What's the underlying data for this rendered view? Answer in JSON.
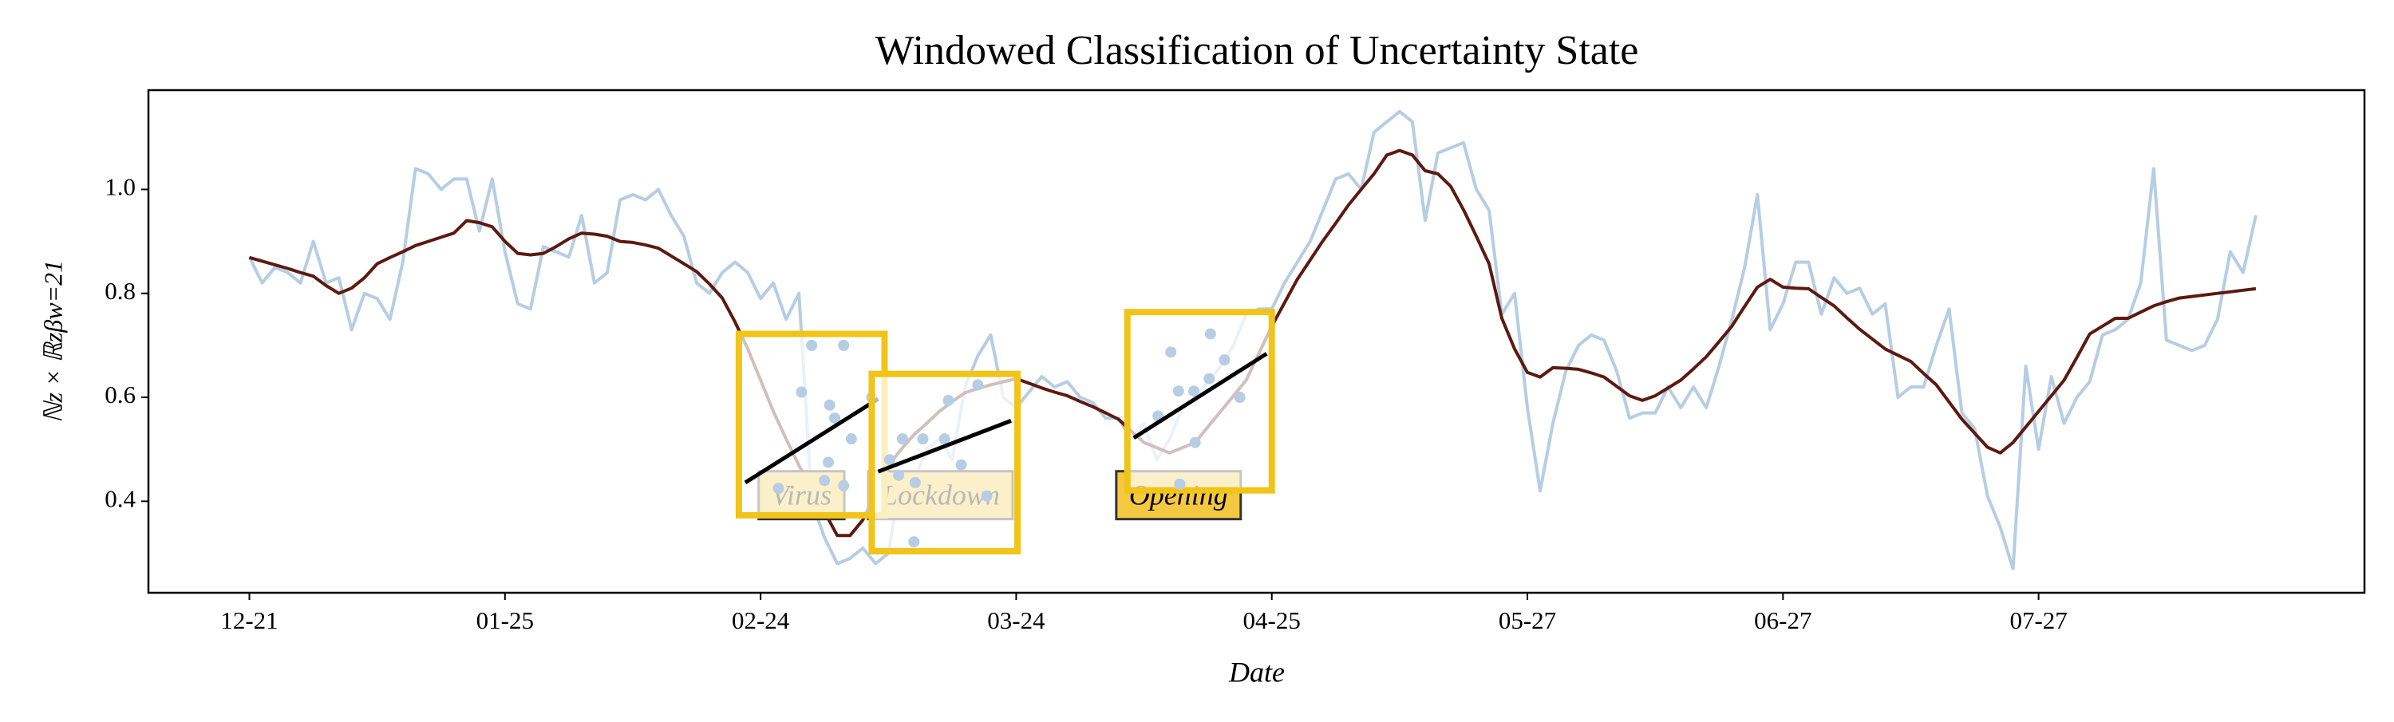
{
  "chart_data": {
    "type": "line",
    "title": "Windowed Classification of Uncertainty State",
    "xlabel": "Date",
    "ylabel": "ℕz × ℝzβw=21",
    "categories": [
      "12-21",
      null,
      null,
      null,
      null,
      null,
      null,
      null,
      null,
      null,
      null,
      null,
      null,
      null,
      null,
      null,
      null,
      null,
      null,
      null,
      "01-25",
      null,
      null,
      null,
      null,
      null,
      null,
      null,
      null,
      null,
      null,
      null,
      null,
      null,
      null,
      null,
      null,
      null,
      null,
      null,
      "02-24",
      null,
      null,
      null,
      null,
      null,
      null,
      null,
      null,
      null,
      null,
      null,
      null,
      null,
      null,
      null,
      null,
      null,
      null,
      null,
      "03-24",
      null,
      null,
      null,
      null,
      null,
      null,
      null,
      null,
      null,
      null,
      null,
      null,
      null,
      null,
      null,
      null,
      null,
      null,
      null,
      "04-25",
      null,
      null,
      null,
      null,
      null,
      null,
      null,
      null,
      null,
      null,
      null,
      null,
      null,
      null,
      null,
      null,
      null,
      null,
      null,
      "05-27",
      null,
      null,
      null,
      null,
      null,
      null,
      null,
      null,
      null,
      null,
      null,
      null,
      null,
      null,
      null,
      null,
      null,
      null,
      null,
      "06-27",
      null,
      null,
      null,
      null,
      null,
      null,
      null,
      null,
      null,
      null,
      null,
      null,
      null,
      null,
      null,
      null,
      null,
      null,
      null,
      "07-27",
      null,
      null,
      null,
      null,
      null,
      null,
      null,
      null,
      null,
      null,
      null,
      null,
      null,
      null,
      null,
      null,
      null
    ],
    "series": [
      {
        "color": "#b6cde4",
        "width": 4,
        "values": [
          0.87,
          0.82,
          0.85,
          0.84,
          0.82,
          0.9,
          0.82,
          0.83,
          0.73,
          0.8,
          0.79,
          0.75,
          0.86,
          1.04,
          1.03,
          1.0,
          1.02,
          1.02,
          0.92,
          1.02,
          0.88,
          0.78,
          0.77,
          0.89,
          0.88,
          0.87,
          0.95,
          0.82,
          0.84,
          0.98,
          0.99,
          0.98,
          1.0,
          0.95,
          0.91,
          0.82,
          0.8,
          0.84,
          0.86,
          0.84,
          0.79,
          0.82,
          0.75,
          0.8,
          0.4,
          0.33,
          0.28,
          0.29,
          0.31,
          0.28,
          0.3,
          0.45,
          0.44,
          0.5,
          0.52,
          0.48,
          0.62,
          0.68,
          0.72,
          0.6,
          0.58,
          0.61,
          0.64,
          0.62,
          0.63,
          0.6,
          0.59,
          0.56,
          0.56,
          0.52,
          0.55,
          0.48,
          0.52,
          0.58,
          0.6,
          0.63,
          0.66,
          0.7,
          0.76,
          0.77,
          0.77,
          0.82,
          0.86,
          0.9,
          0.96,
          1.02,
          1.03,
          1.0,
          1.11,
          1.13,
          1.15,
          1.13,
          0.94,
          1.07,
          1.08,
          1.09,
          1.0,
          0.96,
          0.76,
          0.8,
          0.58,
          0.42,
          0.55,
          0.65,
          0.7,
          0.72,
          0.71,
          0.65,
          0.56,
          0.57,
          0.57,
          0.62,
          0.58,
          0.62,
          0.58,
          0.66,
          0.75,
          0.85,
          0.99,
          0.73,
          0.78,
          0.86,
          0.86,
          0.76,
          0.83,
          0.8,
          0.81,
          0.76,
          0.78,
          0.6,
          0.62,
          0.62,
          0.7,
          0.77,
          0.57,
          0.54,
          0.41,
          0.35,
          0.27,
          0.66,
          0.5,
          0.64,
          0.55,
          0.6,
          0.63,
          0.72,
          0.73,
          0.75,
          0.82,
          1.04,
          0.71,
          0.7,
          0.69,
          0.7,
          0.75,
          0.88,
          0.84,
          0.95
        ]
      },
      {
        "color": "#5c1a10",
        "width": 4,
        "values": [
          0.869,
          0.862,
          0.855,
          0.848,
          0.84,
          0.833,
          0.815,
          0.8,
          0.81,
          0.83,
          0.857,
          0.869,
          0.88,
          0.892,
          0.9,
          0.908,
          0.916,
          0.94,
          0.936,
          0.928,
          0.9,
          0.877,
          0.874,
          0.877,
          0.89,
          0.905,
          0.916,
          0.914,
          0.91,
          0.9,
          0.898,
          0.893,
          0.887,
          0.872,
          0.857,
          0.842,
          0.818,
          0.791,
          0.745,
          0.693,
          0.633,
          0.573,
          0.52,
          0.469,
          0.425,
          0.38,
          0.334,
          0.334,
          0.364,
          0.415,
          0.469,
          0.5,
          0.528,
          0.55,
          0.573,
          0.592,
          0.609,
          0.617,
          0.624,
          0.63,
          0.636,
          0.627,
          0.618,
          0.61,
          0.603,
          0.592,
          0.582,
          0.57,
          0.558,
          0.535,
          0.513,
          0.503,
          0.493,
          0.503,
          0.513,
          0.543,
          0.573,
          0.603,
          0.633,
          0.685,
          0.737,
          0.782,
          0.827,
          0.864,
          0.901,
          0.935,
          0.97,
          1.0,
          1.03,
          1.066,
          1.075,
          1.066,
          1.036,
          1.03,
          1.006,
          0.961,
          0.91,
          0.857,
          0.752,
          0.693,
          0.648,
          0.639,
          0.657,
          0.656,
          0.654,
          0.647,
          0.639,
          0.621,
          0.603,
          0.594,
          0.603,
          0.618,
          0.633,
          0.655,
          0.678,
          0.707,
          0.737,
          0.775,
          0.812,
          0.827,
          0.812,
          0.81,
          0.809,
          0.792,
          0.776,
          0.753,
          0.731,
          0.712,
          0.693,
          0.681,
          0.669,
          0.646,
          0.624,
          0.591,
          0.558,
          0.531,
          0.504,
          0.493,
          0.513,
          0.543,
          0.573,
          0.603,
          0.633,
          0.677,
          0.722,
          0.737,
          0.752,
          0.752,
          0.764,
          0.776,
          0.784,
          0.791,
          0.794,
          0.797,
          0.8,
          0.803,
          0.806,
          0.809
        ]
      }
    ],
    "xlim": [
      -7.9,
      165.5
    ],
    "ylim": [
      0.224,
      1.191
    ],
    "yticks": [
      {
        "value": 0.4,
        "label": "0.4"
      },
      0.6,
      0.8,
      {
        "value": 1.0,
        "label": "1.0"
      }
    ],
    "annotations": [
      {
        "text": "Virus",
        "x": 43.2,
        "y": 0.406,
        "color": "#f5c842"
      },
      {
        "text": "Lockdown",
        "x": 54.1,
        "y": 0.406,
        "color": "#f5c842"
      },
      {
        "text": "Opening",
        "x": 72.7,
        "y": 0.406,
        "color": "#f5c842"
      }
    ],
    "windows": [
      {
        "xrange": [
          38.3,
          49.7
        ],
        "yrange": [
          0.373,
          0.722
        ],
        "color": "#f0c419",
        "points": {
          "x": [
            44,
            46.5,
            43.2,
            45.4,
            45.8,
            45.3,
            47.1,
            46.5,
            41.4,
            45,
            48.7
          ],
          "y": [
            0.7,
            0.7,
            0.61,
            0.585,
            0.56,
            0.475,
            0.52,
            0.43,
            0.425,
            0.44,
            0.6
          ]
        },
        "fit": {
          "x": [
            38.8,
            49.2
          ],
          "y": [
            0.436,
            0.597
          ]
        }
      },
      {
        "xrange": [
          48.7,
          60.1
        ],
        "yrange": [
          0.304,
          0.645
        ],
        "color": "#f0c419",
        "points": {
          "x": [
            50.1,
            51.1,
            52.7,
            54.4,
            52.1,
            55.7,
            57,
            54.7,
            52,
            57.7,
            50.8
          ],
          "y": [
            0.48,
            0.52,
            0.52,
            0.52,
            0.436,
            0.47,
            0.624,
            0.594,
            0.322,
            0.41,
            0.45
          ]
        },
        "fit": {
          "x": [
            49.2,
            59.6
          ],
          "y": [
            0.457,
            0.555
          ]
        }
      },
      {
        "xrange": [
          68.7,
          80.0
        ],
        "yrange": [
          0.421,
          0.764
        ],
        "color": "#f0c419",
        "points": {
          "x": [
            72.1,
            75.2,
            72.7,
            73.9,
            76.3,
            77.5,
            75.1,
            74,
            72.8,
            71.1
          ],
          "y": [
            0.687,
            0.722,
            0.612,
            0.612,
            0.672,
            0.6,
            0.636,
            0.513,
            0.433,
            0.564
          ]
        },
        "fit": {
          "x": [
            69.2,
            79.6
          ],
          "y": [
            0.522,
            0.684
          ]
        }
      }
    ]
  }
}
